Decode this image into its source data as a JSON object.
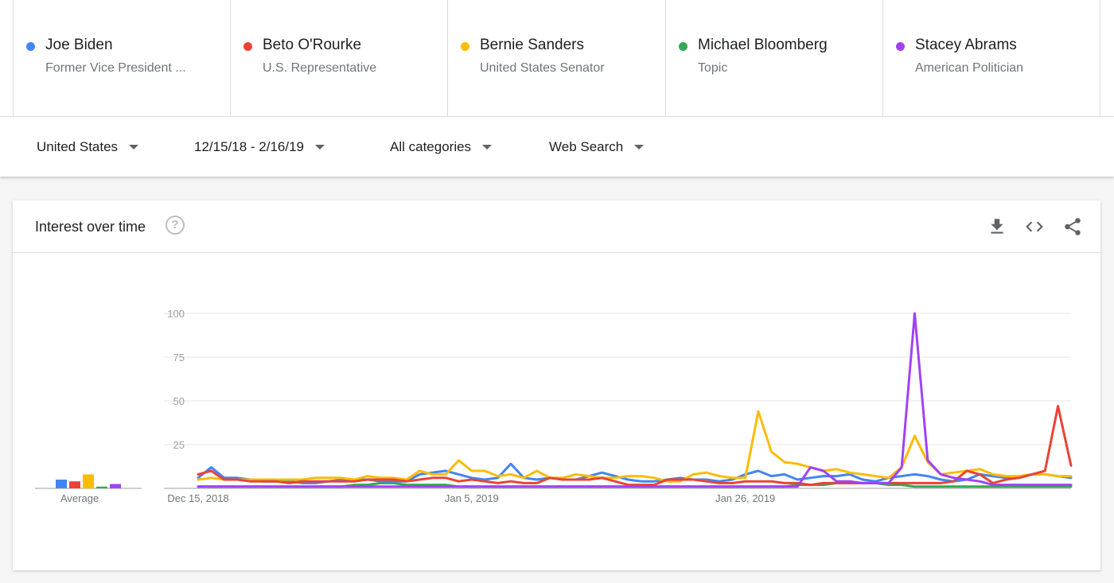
{
  "terms": [
    {
      "name": "Joe Biden",
      "subtitle": "Former Vice President ...",
      "color": "#4285f4"
    },
    {
      "name": "Beto O'Rourke",
      "subtitle": "U.S. Representative",
      "color": "#ea4335"
    },
    {
      "name": "Bernie Sanders",
      "subtitle": "United States Senator",
      "color": "#fbbc04"
    },
    {
      "name": "Michael Bloomberg",
      "subtitle": "Topic",
      "color": "#34a853"
    },
    {
      "name": "Stacey Abrams",
      "subtitle": "American Politician",
      "color": "#a142f4"
    }
  ],
  "filters": {
    "region": "United States",
    "date_range": "12/15/18 - 2/16/19",
    "category": "All categories",
    "search_type": "Web Search"
  },
  "card": {
    "title": "Interest over time",
    "help_icon": "help-circle-icon",
    "actions": [
      "download-icon",
      "embed-code-icon",
      "share-icon"
    ]
  },
  "chart_data": {
    "type": "line",
    "x_tick_labels": [
      "Dec 15, 2018",
      "Jan 5, 2019",
      "Jan 26, 2019"
    ],
    "y_ticks": [
      100,
      75,
      50,
      25
    ],
    "ylim": [
      0,
      100
    ],
    "grid": true,
    "average_label": "Average",
    "averages": [
      5,
      4,
      8,
      1,
      2.5
    ],
    "series": [
      {
        "name": "Joe Biden",
        "color": "#4285f4",
        "values": [
          6,
          12,
          6,
          6,
          5,
          4,
          4,
          4,
          3,
          3,
          4,
          5,
          5,
          5,
          4,
          4,
          4,
          8,
          9,
          10,
          8,
          6,
          5,
          6,
          14,
          6,
          5,
          6,
          5,
          5,
          7,
          9,
          7,
          5,
          4,
          4,
          5,
          6,
          5,
          5,
          4,
          5,
          8,
          10,
          7,
          8,
          5,
          6,
          7,
          7,
          8,
          5,
          4,
          6,
          7,
          8,
          7,
          5,
          4,
          5,
          8,
          7,
          6,
          6,
          8,
          8,
          7,
          6
        ]
      },
      {
        "name": "Beto O'Rourke",
        "color": "#ea4335",
        "values": [
          8,
          10,
          5,
          5,
          4,
          4,
          4,
          3,
          4,
          4,
          4,
          4,
          4,
          5,
          5,
          5,
          4,
          5,
          6,
          6,
          4,
          5,
          4,
          3,
          4,
          3,
          3,
          6,
          5,
          5,
          5,
          6,
          4,
          2,
          2,
          2,
          5,
          5,
          5,
          4,
          3,
          3,
          4,
          4,
          4,
          3,
          3,
          2,
          3,
          3,
          3,
          3,
          3,
          3,
          3,
          3,
          3,
          3,
          4,
          10,
          8,
          3,
          5,
          6,
          8,
          10,
          47,
          13
        ]
      },
      {
        "name": "Bernie Sanders",
        "color": "#fbbc04",
        "values": [
          5,
          6,
          5,
          5,
          5,
          5,
          5,
          5,
          5,
          6,
          6,
          6,
          5,
          7,
          6,
          6,
          5,
          10,
          8,
          8,
          16,
          10,
          10,
          7,
          8,
          6,
          10,
          6,
          6,
          8,
          7,
          6,
          6,
          7,
          7,
          6,
          4,
          4,
          8,
          9,
          7,
          6,
          6,
          44,
          21,
          15,
          14,
          12,
          10,
          11,
          9,
          8,
          7,
          6,
          12,
          30,
          15,
          8,
          9,
          10,
          11,
          8,
          7,
          7,
          8,
          8,
          7,
          7
        ]
      },
      {
        "name": "Michael Bloomberg",
        "color": "#34a853",
        "values": [
          1,
          1,
          1,
          1,
          1,
          1,
          1,
          1,
          1,
          1,
          1,
          1,
          2,
          2,
          3,
          3,
          2,
          2,
          2,
          2,
          1,
          1,
          1,
          1,
          1,
          1,
          1,
          1,
          1,
          1,
          1,
          1,
          1,
          1,
          1,
          1,
          1,
          1,
          1,
          1,
          1,
          1,
          1,
          1,
          1,
          1,
          2,
          2,
          2,
          3,
          3,
          3,
          3,
          2,
          2,
          1,
          1,
          1,
          1,
          1,
          1,
          1,
          1,
          1,
          1,
          1,
          1,
          1
        ]
      },
      {
        "name": "Stacey Abrams",
        "color": "#a142f4",
        "values": [
          1,
          1,
          1,
          1,
          1,
          1,
          1,
          1,
          1,
          1,
          1,
          1,
          1,
          1,
          1,
          1,
          1,
          1,
          1,
          1,
          1,
          1,
          1,
          1,
          1,
          1,
          1,
          1,
          1,
          1,
          1,
          1,
          1,
          1,
          1,
          1,
          1,
          1,
          1,
          1,
          1,
          1,
          1,
          1,
          1,
          1,
          1,
          12,
          10,
          4,
          4,
          3,
          3,
          3,
          12,
          100,
          16,
          8,
          6,
          5,
          4,
          2,
          2,
          2,
          2,
          2,
          2,
          2
        ]
      }
    ]
  }
}
